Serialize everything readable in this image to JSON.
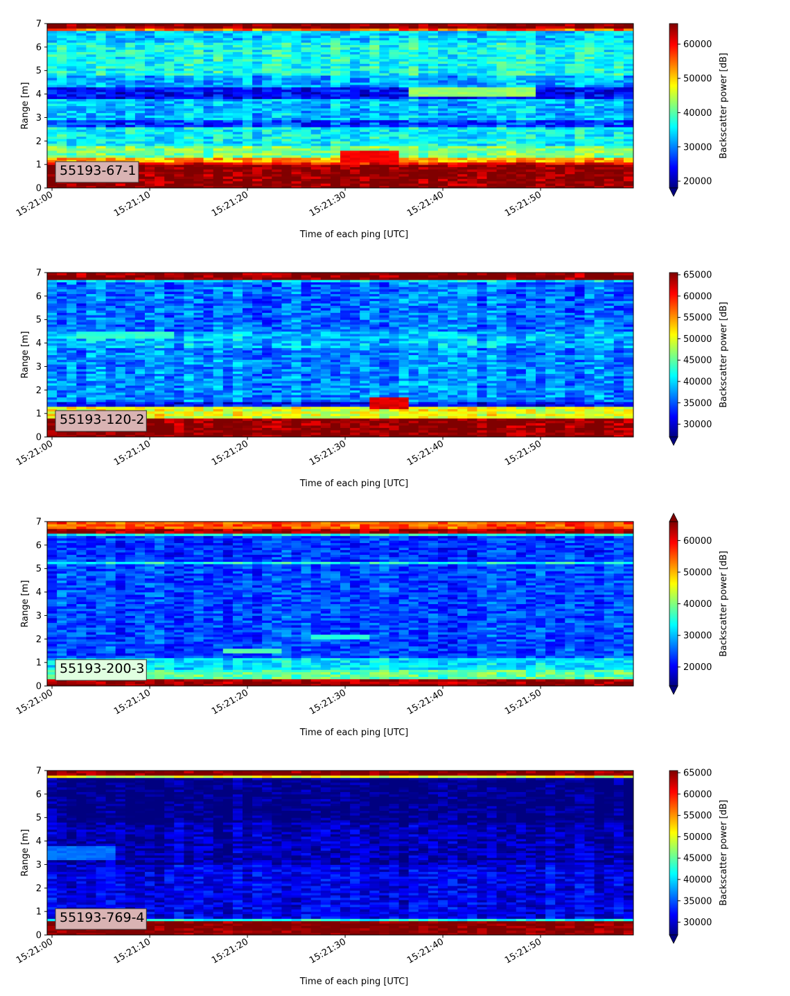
{
  "chart_data": [
    {
      "type": "heatmap",
      "label": "55193-67-1",
      "label_bg": "#d9b3b3",
      "xlabel": "Time of each ping [UTC]",
      "ylabel": "Range [m]",
      "xticks": [
        "15:21:00",
        "15:21:10",
        "15:21:20",
        "15:21:30",
        "15:21:40",
        "15:21:50"
      ],
      "xlim": [
        -0.5,
        59.5
      ],
      "yticks": [
        0,
        1,
        2,
        3,
        4,
        5,
        6,
        7
      ],
      "ylim": [
        0,
        7
      ],
      "colorbar": {
        "label": "Backscatter power [dB]",
        "colormap": "jet",
        "vmin": 18000,
        "vmax": 66000,
        "ticks": [
          20000,
          30000,
          40000,
          50000,
          60000
        ],
        "extend": "min"
      },
      "profile": {
        "bands": [
          {
            "from": 0.0,
            "to": 0.2,
            "value": 66000
          },
          {
            "from": 0.2,
            "to": 1.0,
            "value": 66000
          },
          {
            "from": 1.0,
            "to": 1.15,
            "value": 60000
          },
          {
            "from": 1.15,
            "to": 1.3,
            "value": 52000
          },
          {
            "from": 1.3,
            "to": 1.8,
            "value": 42000
          },
          {
            "from": 1.8,
            "to": 2.6,
            "value": 36000
          },
          {
            "from": 2.6,
            "to": 2.9,
            "value": 27000
          },
          {
            "from": 2.9,
            "to": 3.8,
            "value": 33000
          },
          {
            "from": 3.8,
            "to": 4.3,
            "value": 24000
          },
          {
            "from": 4.3,
            "to": 4.8,
            "value": 32000
          },
          {
            "from": 4.8,
            "to": 6.2,
            "value": 37000
          },
          {
            "from": 6.2,
            "to": 6.7,
            "value": 34000
          },
          {
            "from": 6.7,
            "to": 6.8,
            "value": 55000
          },
          {
            "from": 6.8,
            "to": 7.0,
            "value": 66000
          }
        ],
        "noise": 6000,
        "features": [
          {
            "t0": 30,
            "t1": 35,
            "r0": 1.15,
            "r1": 1.6,
            "value": 60000
          },
          {
            "t0": 37,
            "t1": 49,
            "r0": 3.9,
            "r1": 4.3,
            "value": 43000
          }
        ]
      }
    },
    {
      "type": "heatmap",
      "label": "55193-120-2",
      "label_bg": "#d9b3b3",
      "xlabel": "Time of each ping [UTC]",
      "ylabel": "Range [m]",
      "xticks": [
        "15:21:00",
        "15:21:10",
        "15:21:20",
        "15:21:30",
        "15:21:40",
        "15:21:50"
      ],
      "xlim": [
        -0.5,
        59.5
      ],
      "yticks": [
        0,
        1,
        2,
        3,
        4,
        5,
        6,
        7
      ],
      "ylim": [
        0,
        7
      ],
      "colorbar": {
        "label": "Backscatter power [dB]",
        "colormap": "jet",
        "vmin": 27000,
        "vmax": 65500,
        "ticks": [
          30000,
          35000,
          40000,
          45000,
          50000,
          55000,
          60000,
          65000
        ],
        "extend": "min"
      },
      "profile": {
        "bands": [
          {
            "from": 0.0,
            "to": 0.2,
            "value": 65500
          },
          {
            "from": 0.2,
            "to": 0.8,
            "value": 65500
          },
          {
            "from": 0.8,
            "to": 1.3,
            "value": 50000
          },
          {
            "from": 1.3,
            "to": 1.5,
            "value": 32000
          },
          {
            "from": 1.5,
            "to": 3.8,
            "value": 37000
          },
          {
            "from": 3.8,
            "to": 4.5,
            "value": 39000
          },
          {
            "from": 4.5,
            "to": 6.6,
            "value": 36000
          },
          {
            "from": 6.6,
            "to": 6.75,
            "value": 40000
          },
          {
            "from": 6.75,
            "to": 7.0,
            "value": 65500
          }
        ],
        "noise": 5000,
        "features": [
          {
            "t0": 33,
            "t1": 36,
            "r0": 1.25,
            "r1": 1.7,
            "value": 62000
          },
          {
            "t0": 3,
            "t1": 12,
            "r0": 4.2,
            "r1": 4.5,
            "value": 43000
          }
        ]
      }
    },
    {
      "type": "heatmap",
      "label": "55193-200-3",
      "label_bg": "#e0ffe0",
      "xlabel": "Time of each ping [UTC]",
      "ylabel": "Range [m]",
      "xticks": [
        "15:21:00",
        "15:21:10",
        "15:21:20",
        "15:21:30",
        "15:21:40",
        "15:21:50"
      ],
      "xlim": [
        -0.5,
        59.5
      ],
      "yticks": [
        0,
        1,
        2,
        3,
        4,
        5,
        6,
        7
      ],
      "ylim": [
        0,
        7
      ],
      "colorbar": {
        "label": "Backscatter power [dB]",
        "colormap": "jet",
        "vmin": 14000,
        "vmax": 66000,
        "ticks": [
          20000,
          30000,
          40000,
          50000,
          60000
        ],
        "extend": "both"
      },
      "profile": {
        "bands": [
          {
            "from": 0.0,
            "to": 0.1,
            "value": 66000
          },
          {
            "from": 0.1,
            "to": 0.35,
            "value": 64000
          },
          {
            "from": 0.35,
            "to": 0.7,
            "value": 38000
          },
          {
            "from": 0.7,
            "to": 1.2,
            "value": 32000
          },
          {
            "from": 1.2,
            "to": 5.2,
            "value": 24000
          },
          {
            "from": 5.2,
            "to": 5.35,
            "value": 34000
          },
          {
            "from": 5.35,
            "to": 6.4,
            "value": 23000
          },
          {
            "from": 6.4,
            "to": 6.55,
            "value": 34000
          },
          {
            "from": 6.55,
            "to": 6.75,
            "value": 64000
          },
          {
            "from": 6.75,
            "to": 7.0,
            "value": 55000
          }
        ],
        "noise": 6000,
        "features": [
          {
            "t0": 27,
            "t1": 32,
            "r0": 2.05,
            "r1": 2.2,
            "value": 35000
          },
          {
            "t0": 18,
            "t1": 23,
            "r0": 1.45,
            "r1": 1.6,
            "value": 38000
          }
        ]
      }
    },
    {
      "type": "heatmap",
      "label": "55193-769-4",
      "label_bg": "#d9b3b3",
      "xlabel": "Time of each ping [UTC]",
      "ylabel": "Range [m]",
      "xticks": [
        "15:21:00",
        "15:21:10",
        "15:21:20",
        "15:21:30",
        "15:21:40",
        "15:21:50"
      ],
      "xlim": [
        -0.5,
        59.5
      ],
      "yticks": [
        0,
        1,
        2,
        3,
        4,
        5,
        6,
        7
      ],
      "ylim": [
        0,
        7
      ],
      "colorbar": {
        "label": "Backscatter power [dB]",
        "colormap": "jet",
        "vmin": 27000,
        "vmax": 65500,
        "ticks": [
          30000,
          35000,
          40000,
          45000,
          50000,
          55000,
          60000,
          65000
        ],
        "extend": "min"
      },
      "profile": {
        "bands": [
          {
            "from": 0.0,
            "to": 0.2,
            "value": 65500
          },
          {
            "from": 0.2,
            "to": 0.65,
            "value": 65500
          },
          {
            "from": 0.65,
            "to": 0.75,
            "value": 42000
          },
          {
            "from": 0.75,
            "to": 3.0,
            "value": 31000
          },
          {
            "from": 3.0,
            "to": 4.8,
            "value": 29000
          },
          {
            "from": 4.8,
            "to": 6.7,
            "value": 27000
          },
          {
            "from": 6.7,
            "to": 6.8,
            "value": 50000
          },
          {
            "from": 6.8,
            "to": 7.0,
            "value": 65500
          }
        ],
        "noise": 4000,
        "features": [
          {
            "t0": 0,
            "t1": 6,
            "r0": 3.2,
            "r1": 3.8,
            "value": 36000
          }
        ]
      }
    }
  ]
}
